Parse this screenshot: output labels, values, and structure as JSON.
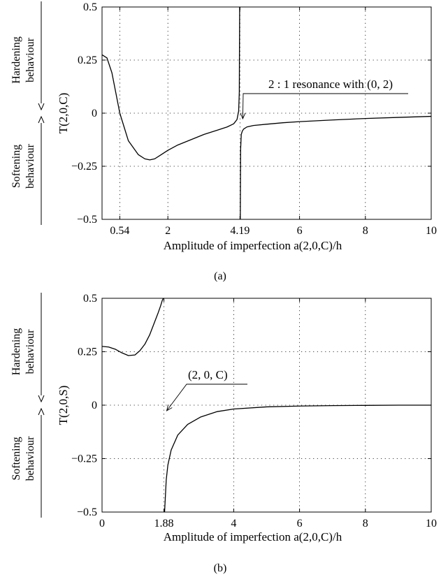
{
  "chart_data": [
    {
      "panel": "(a)",
      "type": "line",
      "xlabel": "Amplitude of imperfection a(2,0,C)/h",
      "ylabel": "T(2,0,C)",
      "xlim": [
        0,
        10
      ],
      "ylim": [
        -0.5,
        0.5
      ],
      "xticks": [
        {
          "value": 0.54,
          "label": "0.54"
        },
        {
          "value": 2,
          "label": "2"
        },
        {
          "value": 4.19,
          "label": "4.19"
        },
        {
          "value": 6,
          "label": "6"
        },
        {
          "value": 8,
          "label": "8"
        },
        {
          "value": 10,
          "label": "10"
        }
      ],
      "yticks": [
        {
          "value": 0.5,
          "label": "0.5"
        },
        {
          "value": 0.25,
          "label": "0.25"
        },
        {
          "value": 0,
          "label": "0"
        },
        {
          "value": -0.25,
          "label": "−0.25"
        },
        {
          "value": -0.5,
          "label": "−0.5"
        }
      ],
      "grid": true,
      "side_labels": {
        "upper": [
          "Hardening",
          "behaviour"
        ],
        "lower": [
          "Softening",
          "behaviour"
        ]
      },
      "annotation": {
        "text": "2 : 1 resonance with (0, 2)",
        "x": 4.19,
        "y": 0
      },
      "series": [
        {
          "x": [
            0,
            0.15,
            0.3,
            0.54,
            0.8,
            1.1,
            1.3,
            1.45,
            1.6,
            1.8,
            2.0,
            2.3,
            2.7,
            3.1,
            3.5,
            3.8,
            4.0,
            4.1,
            4.15,
            4.17,
            4.18
          ],
          "y": [
            0.275,
            0.26,
            0.19,
            0.0,
            -0.13,
            -0.195,
            -0.215,
            -0.22,
            -0.215,
            -0.195,
            -0.175,
            -0.15,
            -0.125,
            -0.1,
            -0.08,
            -0.065,
            -0.05,
            -0.03,
            0.01,
            0.1,
            0.5
          ]
        },
        {
          "x": [
            4.2,
            4.21,
            4.23,
            4.26,
            4.3,
            4.4,
            4.6,
            5.0,
            5.5,
            6.0,
            7.0,
            8.0,
            9.0,
            10.0
          ],
          "y": [
            -0.5,
            -0.17,
            -0.1,
            -0.085,
            -0.075,
            -0.065,
            -0.058,
            -0.052,
            -0.045,
            -0.04,
            -0.032,
            -0.025,
            -0.02,
            -0.015
          ]
        }
      ]
    },
    {
      "panel": "(b)",
      "type": "line",
      "xlabel": "Amplitude of imperfection a(2,0,C)/h",
      "ylabel": "T(2,0,S)",
      "xlim": [
        0,
        10
      ],
      "ylim": [
        -0.5,
        0.5
      ],
      "xticks": [
        {
          "value": 0,
          "label": "0"
        },
        {
          "value": 1.88,
          "label": "1.88"
        },
        {
          "value": 4,
          "label": "4"
        },
        {
          "value": 6,
          "label": "6"
        },
        {
          "value": 8,
          "label": "8"
        },
        {
          "value": 10,
          "label": "10"
        }
      ],
      "yticks": [
        {
          "value": 0.5,
          "label": "0.5"
        },
        {
          "value": 0.25,
          "label": "0.25"
        },
        {
          "value": 0,
          "label": "0"
        },
        {
          "value": -0.25,
          "label": "−0.25"
        },
        {
          "value": -0.5,
          "label": "−0.5"
        }
      ],
      "grid": true,
      "side_labels": {
        "upper": [
          "Hardening",
          "behaviour"
        ],
        "lower": [
          "Softening",
          "behaviour"
        ]
      },
      "annotation": {
        "text": "(2, 0, C)",
        "x": 1.88,
        "y": 0
      },
      "series": [
        {
          "x": [
            0,
            0.2,
            0.4,
            0.6,
            0.8,
            1.0,
            1.15,
            1.3,
            1.45,
            1.6,
            1.7,
            1.78,
            1.83,
            1.86
          ],
          "y": [
            0.275,
            0.272,
            0.262,
            0.245,
            0.232,
            0.235,
            0.255,
            0.285,
            0.33,
            0.39,
            0.43,
            0.465,
            0.49,
            0.5
          ]
        },
        {
          "x": [
            1.9,
            1.95,
            2.0,
            2.1,
            2.3,
            2.6,
            3.0,
            3.5,
            4.0,
            5.0,
            6.0,
            7.0,
            8.0,
            9.0,
            10.0
          ],
          "y": [
            -0.5,
            -0.35,
            -0.28,
            -0.21,
            -0.14,
            -0.09,
            -0.055,
            -0.03,
            -0.018,
            -0.008,
            -0.004,
            -0.002,
            -0.001,
            0.0,
            0.0
          ]
        }
      ]
    }
  ],
  "captions": [
    "(a)",
    "(b)"
  ]
}
